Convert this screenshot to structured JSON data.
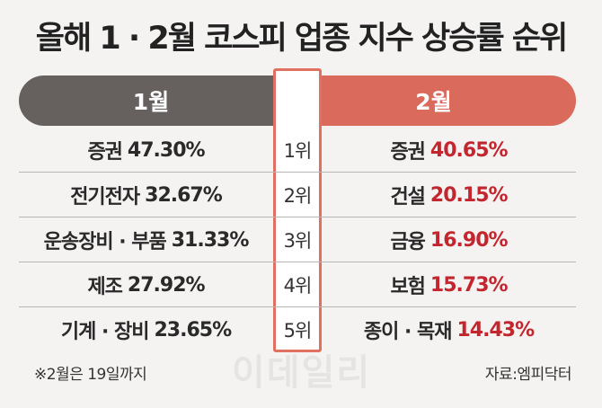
{
  "title": "올해 1 · 2월 코스피 업종 지수 상승률 순위",
  "chart_data": {
    "type": "table",
    "columns": [
      "1월",
      "2월"
    ],
    "rows": [
      {
        "rank": "1위",
        "jan_sector": "증권",
        "jan_value": "47.30%",
        "feb_sector": "증권",
        "feb_value": "40.65%"
      },
      {
        "rank": "2위",
        "jan_sector": "전기전자",
        "jan_value": "32.67%",
        "feb_sector": "건설",
        "feb_value": "20.15%"
      },
      {
        "rank": "3위",
        "jan_sector": "운송장비 · 부품",
        "jan_value": "31.33%",
        "feb_sector": "금융",
        "feb_value": "16.90%"
      },
      {
        "rank": "4위",
        "jan_sector": "제조",
        "jan_value": "27.92%",
        "feb_sector": "보험",
        "feb_value": "15.73%"
      },
      {
        "rank": "5위",
        "jan_sector": "기계 · 장비",
        "jan_value": "23.65%",
        "feb_sector": "종이 · 목재",
        "feb_value": "14.43%"
      }
    ]
  },
  "note": "※2월은 19일까지",
  "source": "자료:엠피닥터",
  "watermark": "이데일리",
  "colors": {
    "jan_header": "#66605e",
    "feb_header": "#d96a5c",
    "rank_border": "#e0705f",
    "feb_value": "#c3262f"
  }
}
